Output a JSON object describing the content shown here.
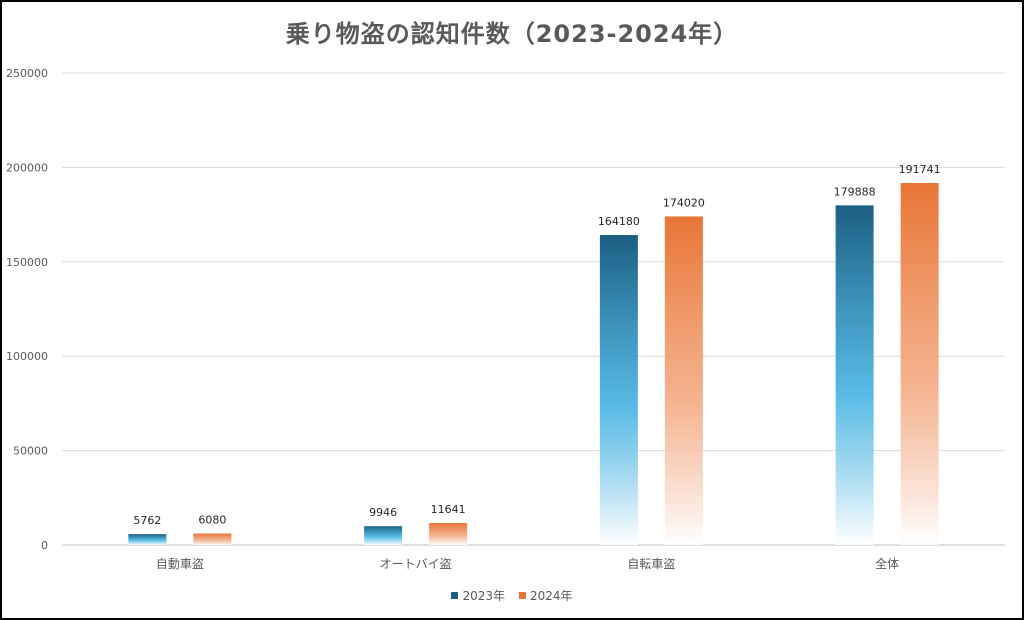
{
  "chart_data": {
    "type": "bar",
    "title": "乗り物盗の認知件数（2023-2024年）",
    "xlabel": "",
    "ylabel": "",
    "categories": [
      "自動車盗",
      "オートバイ盗",
      "自転車盗",
      "全体"
    ],
    "series": [
      {
        "name": "2023年",
        "values": [
          5762,
          9946,
          164180,
          179888
        ],
        "color": "#1c5f82",
        "gradient_to": "#3aaee0"
      },
      {
        "name": "2024年",
        "values": [
          6080,
          11641,
          174020,
          191741
        ],
        "color": "#e87536",
        "gradient_to": "#f2a47a"
      }
    ],
    "ylim": [
      0,
      250000
    ],
    "yticks": [
      "0",
      "50000",
      "100000",
      "150000",
      "200000",
      "250000"
    ],
    "grid": true,
    "legend_position": "bottom",
    "data_labels": true
  }
}
